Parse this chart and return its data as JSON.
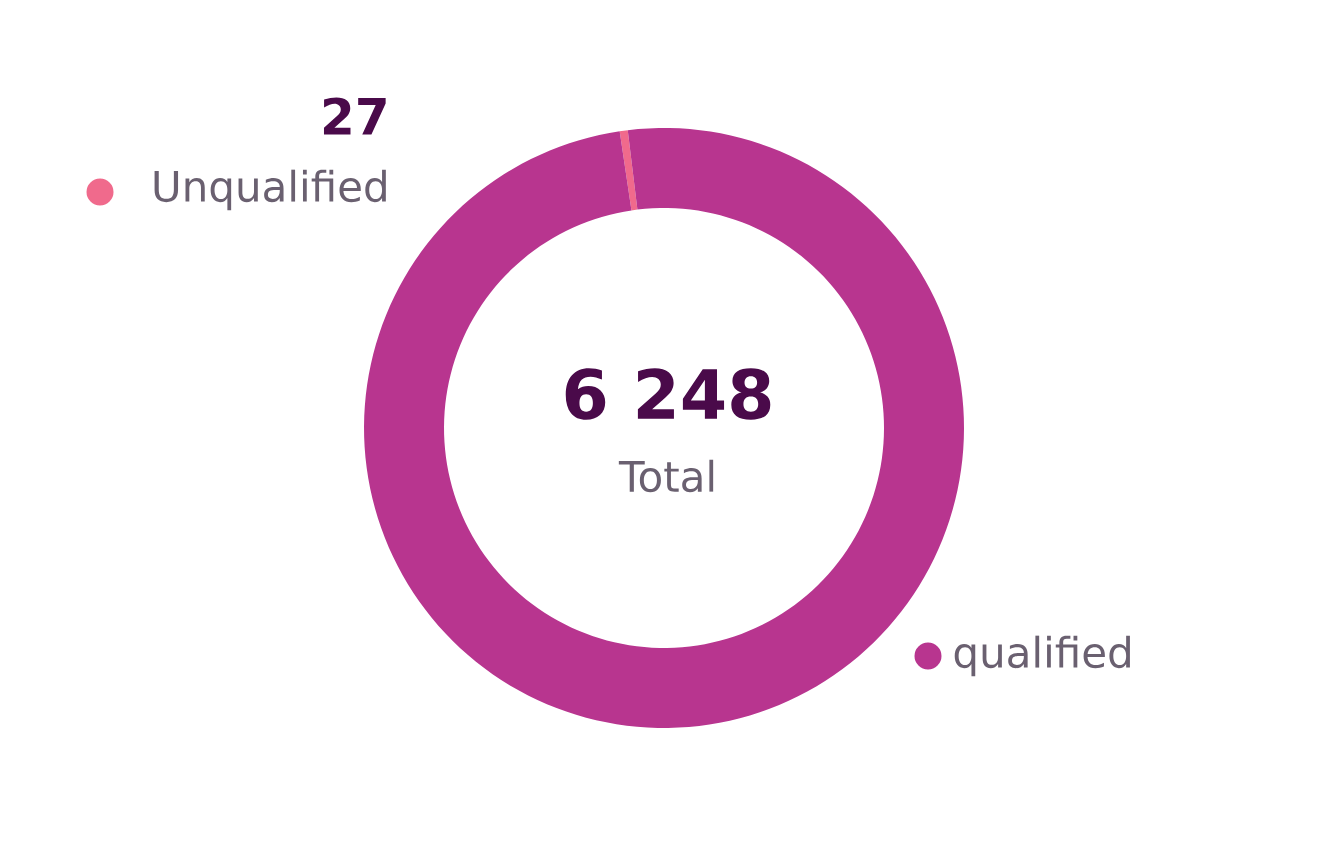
{
  "chart_data": {
    "type": "donut",
    "categories": [
      "Unqualified",
      "qualified"
    ],
    "values": [
      27,
      6221
    ],
    "colors": [
      "#f06a8c",
      "#b8358f"
    ],
    "value_labels": [
      "27",
      null
    ],
    "annotations": [
      "6 248",
      "Total"
    ],
    "legend": "top left"
  }
}
